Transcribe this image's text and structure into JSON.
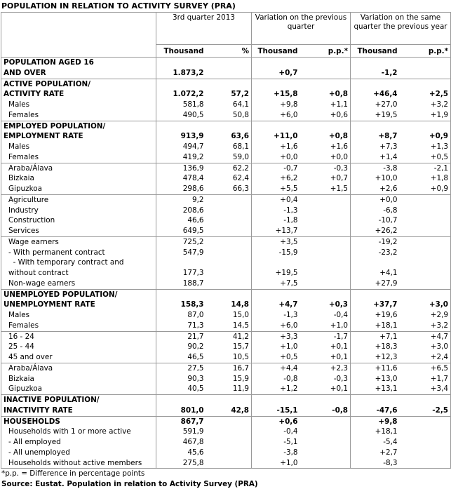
{
  "title": "POPULATION IN RELATION TO ACTIVITY SURVEY (PRA)",
  "header": {
    "groups": [
      "3rd quarter 2013",
      "Variation on the previous quarter",
      "Variation on the same quarter the previous year"
    ],
    "units": [
      "Thousand",
      "%",
      "Thousand",
      "p.p.*",
      "Thousand",
      "p.p.*"
    ]
  },
  "sections": [
    {
      "rows": [
        {
          "label": "POPULATION AGED 16\nAND OVER",
          "bold": true,
          "cells": [
            "1.873,2",
            null,
            "+0,7",
            null,
            "-1,2",
            null
          ]
        }
      ]
    },
    {
      "rows": [
        {
          "label": "ACTIVE POPULATION/\nACTIVITY RATE",
          "bold": true,
          "cells": [
            "1.072,2",
            "57,2",
            "+15,8",
            "+0,8",
            "+46,4",
            "+2,5"
          ]
        },
        {
          "label": "Males",
          "cells": [
            "581,8",
            "64,1",
            "+9,8",
            "+1,1",
            "+27,0",
            "+3,2"
          ]
        },
        {
          "label": "Females",
          "cells": [
            "490,5",
            "50,8",
            "+6,0",
            "+0,6",
            "+19,5",
            "+1,9"
          ]
        }
      ]
    },
    {
      "rows": [
        {
          "label": "EMPLOYED POPULATION/\nEMPLOYMENT RATE",
          "bold": true,
          "cells": [
            "913,9",
            "63,6",
            "+11,0",
            "+0,8",
            "+8,7",
            "+0,9"
          ]
        },
        {
          "label": "Males",
          "cells": [
            "494,7",
            "68,1",
            "+1,6",
            "+1,6",
            "+7,3",
            "+1,3"
          ]
        },
        {
          "label": "Females",
          "cells": [
            "419,2",
            "59,0",
            "+0,0",
            "+0,0",
            "+1,4",
            "+0,5"
          ]
        }
      ]
    },
    {
      "rows": [
        {
          "label": "Araba/Álava",
          "cells": [
            "136,9",
            "62,2",
            "-0,7",
            "-0,3",
            "-3,8",
            "-2,1"
          ]
        },
        {
          "label": "Bizkaia",
          "cells": [
            "478,4",
            "62,4",
            "+6,2",
            "+0,7",
            "+10,0",
            "+1,8"
          ]
        },
        {
          "label": "Gipuzkoa",
          "cells": [
            "298,6",
            "66,3",
            "+5,5",
            "+1,5",
            "+2,6",
            "+0,9"
          ]
        }
      ]
    },
    {
      "rows": [
        {
          "label": "Agriculture",
          "cells": [
            "9,2",
            null,
            "+0,4",
            null,
            "+0,0",
            null
          ]
        },
        {
          "label": "Industry",
          "cells": [
            "208,6",
            null,
            "-1,3",
            null,
            "-6,8",
            null
          ]
        },
        {
          "label": "Construction",
          "cells": [
            "46,6",
            null,
            "-1,8",
            null,
            "-10,7",
            null
          ]
        },
        {
          "label": "Services",
          "cells": [
            "649,5",
            null,
            "+13,7",
            null,
            "+26,2",
            null
          ]
        }
      ]
    },
    {
      "rows": [
        {
          "label": "Wage earners",
          "cells": [
            "725,2",
            null,
            "+3,5",
            null,
            "-19,2",
            null
          ]
        },
        {
          "label": "- With permanent contract",
          "cells": [
            "547,9",
            null,
            "-15,9",
            null,
            "-23,2",
            null
          ]
        },
        {
          "label": "  - With temporary contract and\nwithout contract",
          "cells": [
            "177,3",
            null,
            "+19,5",
            null,
            "+4,1",
            null
          ]
        },
        {
          "label": "Non-wage earners",
          "cells": [
            "188,7",
            null,
            "+7,5",
            null,
            "+27,9",
            null
          ]
        }
      ]
    },
    {
      "rows": [
        {
          "label": "UNEMPLOYED POPULATION/\nUNEMPLOYMENT RATE",
          "bold": true,
          "cells": [
            "158,3",
            "14,8",
            "+4,7",
            "+0,3",
            "+37,7",
            "+3,0"
          ]
        },
        {
          "label": "Males",
          "cells": [
            "87,0",
            "15,0",
            "-1,3",
            "-0,4",
            "+19,6",
            "+2,9"
          ]
        },
        {
          "label": "Females",
          "cells": [
            "71,3",
            "14,5",
            "+6,0",
            "+1,0",
            "+18,1",
            "+3,2"
          ]
        }
      ]
    },
    {
      "rows": [
        {
          "label": "16 - 24",
          "cells": [
            "21,7",
            "41,2",
            "+3,3",
            "-1,7",
            "+7,1",
            "+4,7"
          ]
        },
        {
          "label": "25 - 44",
          "cells": [
            "90,2",
            "15,7",
            "+1,0",
            "+0,1",
            "+18,3",
            "+3,0"
          ]
        },
        {
          "label": "45 and over",
          "cells": [
            "46,5",
            "10,5",
            "+0,5",
            "+0,1",
            "+12,3",
            "+2,4"
          ]
        }
      ]
    },
    {
      "rows": [
        {
          "label": "Araba/Álava",
          "cells": [
            "27,5",
            "16,7",
            "+4,4",
            "+2,3",
            "+11,6",
            "+6,5"
          ]
        },
        {
          "label": "Bizkaia",
          "cells": [
            "90,3",
            "15,9",
            "-0,8",
            "-0,3",
            "+13,0",
            "+1,7"
          ]
        },
        {
          "label": "Gipuzkoa",
          "cells": [
            "40,5",
            "11,9",
            "+1,2",
            "+0,1",
            "+13,1",
            "+3,4"
          ]
        }
      ]
    },
    {
      "rows": [
        {
          "label": "INACTIVE POPULATION/\nINACTIVITY RATE",
          "bold": true,
          "cells": [
            "801,0",
            "42,8",
            "-15,1",
            "-0,8",
            "-47,6",
            "-2,5"
          ]
        }
      ]
    },
    {
      "rows": [
        {
          "label": "HOUSEHOLDS",
          "bold": true,
          "cells": [
            "867,7",
            null,
            "+0,6",
            null,
            "+9,8",
            null
          ]
        },
        {
          "label": "Households with 1 or more active",
          "cells": [
            "591,9",
            null,
            "-0,4",
            null,
            "+18,1",
            null
          ]
        },
        {
          "label": "- All employed",
          "cells": [
            "467,8",
            null,
            "-5,1",
            null,
            "-5,4",
            null
          ]
        },
        {
          "label": "- All unemployed",
          "cells": [
            "45,6",
            null,
            "-3,8",
            null,
            "+2,7",
            null
          ]
        },
        {
          "label": "Households without active members",
          "cells": [
            "275,8",
            null,
            "+1,0",
            null,
            "-8,3",
            null
          ]
        }
      ]
    }
  ],
  "footnote": "*p.p. = Difference in percentage points",
  "source": "Source: Eustat. Population in relation to Activity Survey (PRA)"
}
